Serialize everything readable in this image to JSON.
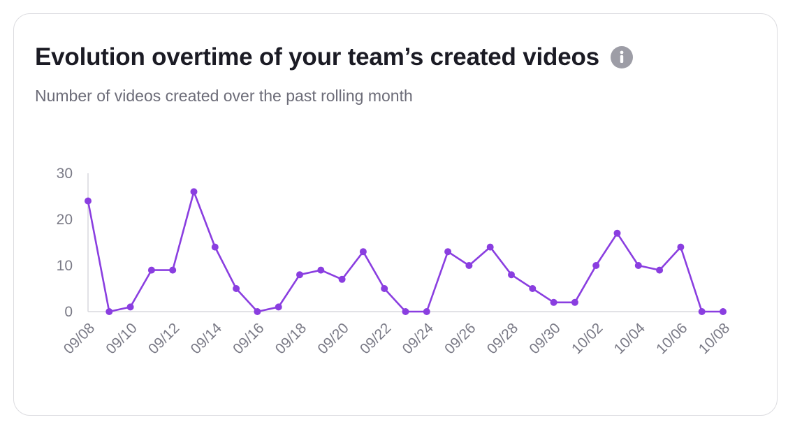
{
  "card": {
    "title": "Evolution overtime of your team’s created videos",
    "subtitle": "Number of videos created over the past rolling month",
    "info_icon": "info-icon"
  },
  "colors": {
    "accent": "#8a3ee0",
    "axis": "#d8d8dd",
    "tick_text": "#7a7a86"
  },
  "chart_data": {
    "type": "line",
    "x": [
      "09/08",
      "09/09",
      "09/10",
      "09/11",
      "09/12",
      "09/13",
      "09/14",
      "09/15",
      "09/16",
      "09/17",
      "09/18",
      "09/19",
      "09/20",
      "09/21",
      "09/22",
      "09/23",
      "09/24",
      "09/25",
      "09/26",
      "09/27",
      "09/28",
      "09/29",
      "09/30",
      "10/01",
      "10/02",
      "10/03",
      "10/04",
      "10/05",
      "10/06",
      "10/07",
      "10/08"
    ],
    "series": [
      {
        "values": [
          24,
          0,
          1,
          9,
          9,
          26,
          14,
          5,
          0,
          1,
          8,
          9,
          7,
          13,
          5,
          0,
          0,
          13,
          10,
          14,
          8,
          5,
          2,
          2,
          10,
          17,
          10,
          9,
          14,
          0,
          0
        ]
      }
    ],
    "x_tick_labels": [
      "09/08",
      "09/10",
      "09/12",
      "09/14",
      "09/16",
      "09/18",
      "09/20",
      "09/22",
      "09/24",
      "09/26",
      "09/28",
      "09/30",
      "10/02",
      "10/04",
      "10/06",
      "10/08"
    ],
    "y_tick_labels": [
      "0",
      "10",
      "20",
      "30"
    ],
    "ylim": [
      0,
      30
    ],
    "grid": false,
    "legend": "none"
  }
}
